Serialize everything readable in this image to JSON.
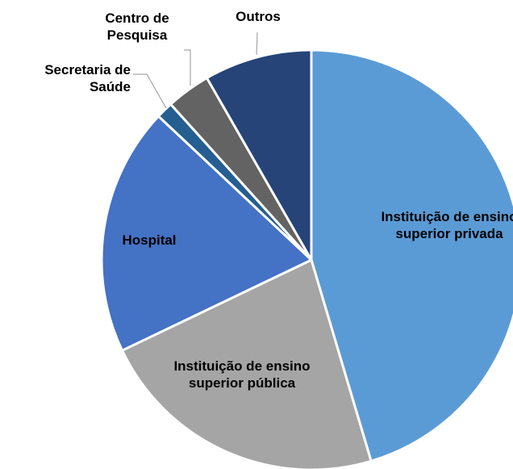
{
  "chart_data": {
    "type": "pie",
    "categories": [
      "Instituição de ensino superior privada",
      "Instituição de ensino superior pública",
      "Hospital",
      "Secretaria de Saúde",
      "Centro de Pesquisa",
      "Outros"
    ],
    "values": [
      45.4,
      22.5,
      19.1,
      1.3,
      3.4,
      8.3
    ],
    "colors": [
      "#5b9bd5",
      "#a5a5a5",
      "#4472c4",
      "#255e91",
      "#636363",
      "#264478"
    ]
  }
}
